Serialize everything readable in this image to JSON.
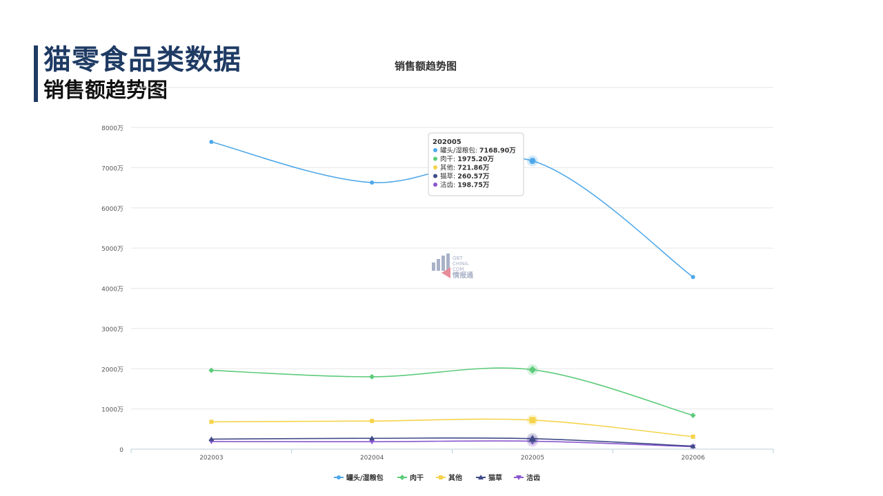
{
  "slide": {
    "title": "猫零食品类数据",
    "subtitle": "销售额趋势图"
  },
  "watermark": {
    "line1": "QBT",
    "line2": "CHINA.",
    "line3": "COM",
    "brand": "情报通"
  },
  "tooltip": {
    "period": "202005",
    "rows": [
      {
        "name": "罐头/湿粮包",
        "value": "7168.90万",
        "color": "#4ea8ea"
      },
      {
        "name": "肉干",
        "value": "1975.20万",
        "color": "#5ccb7a"
      },
      {
        "name": "其他",
        "value": "721.86万",
        "color": "#f5d34a"
      },
      {
        "name": "猫草",
        "value": "260.57万",
        "color": "#3e4a86"
      },
      {
        "name": "洁齿",
        "value": "198.75万",
        "color": "#8a55cf"
      }
    ]
  },
  "chart_data": {
    "type": "line",
    "title": "销售额趋势图",
    "xlabel": "",
    "ylabel": "",
    "x": [
      "202003",
      "202004",
      "202005",
      "202006"
    ],
    "ylim": [
      0,
      8000
    ],
    "yticks": [
      0,
      1000,
      2000,
      3000,
      4000,
      5000,
      6000,
      7000,
      8000
    ],
    "ytick_labels": [
      "0",
      "1000万",
      "2000万",
      "3000万",
      "4000万",
      "5000万",
      "6000万",
      "7000万",
      "8000万"
    ],
    "grid": true,
    "legend_position": "bottom",
    "highlighted_x": "202005",
    "series": [
      {
        "name": "罐头/湿粮包",
        "color": "#4ea8ea",
        "marker": "circle",
        "values": [
          7640,
          6630,
          7168.9,
          4280
        ]
      },
      {
        "name": "肉干",
        "color": "#5ccb7a",
        "marker": "diamond",
        "values": [
          1960,
          1800,
          1975.2,
          840
        ]
      },
      {
        "name": "其他",
        "color": "#f5d34a",
        "marker": "square",
        "values": [
          680,
          700,
          721.86,
          310
        ]
      },
      {
        "name": "猫草",
        "color": "#3e4a86",
        "marker": "triangle",
        "values": [
          250,
          270,
          260.57,
          75
        ]
      },
      {
        "name": "洁齿",
        "color": "#8a55cf",
        "marker": "triangle-down",
        "values": [
          190,
          185,
          198.75,
          60
        ]
      }
    ]
  }
}
